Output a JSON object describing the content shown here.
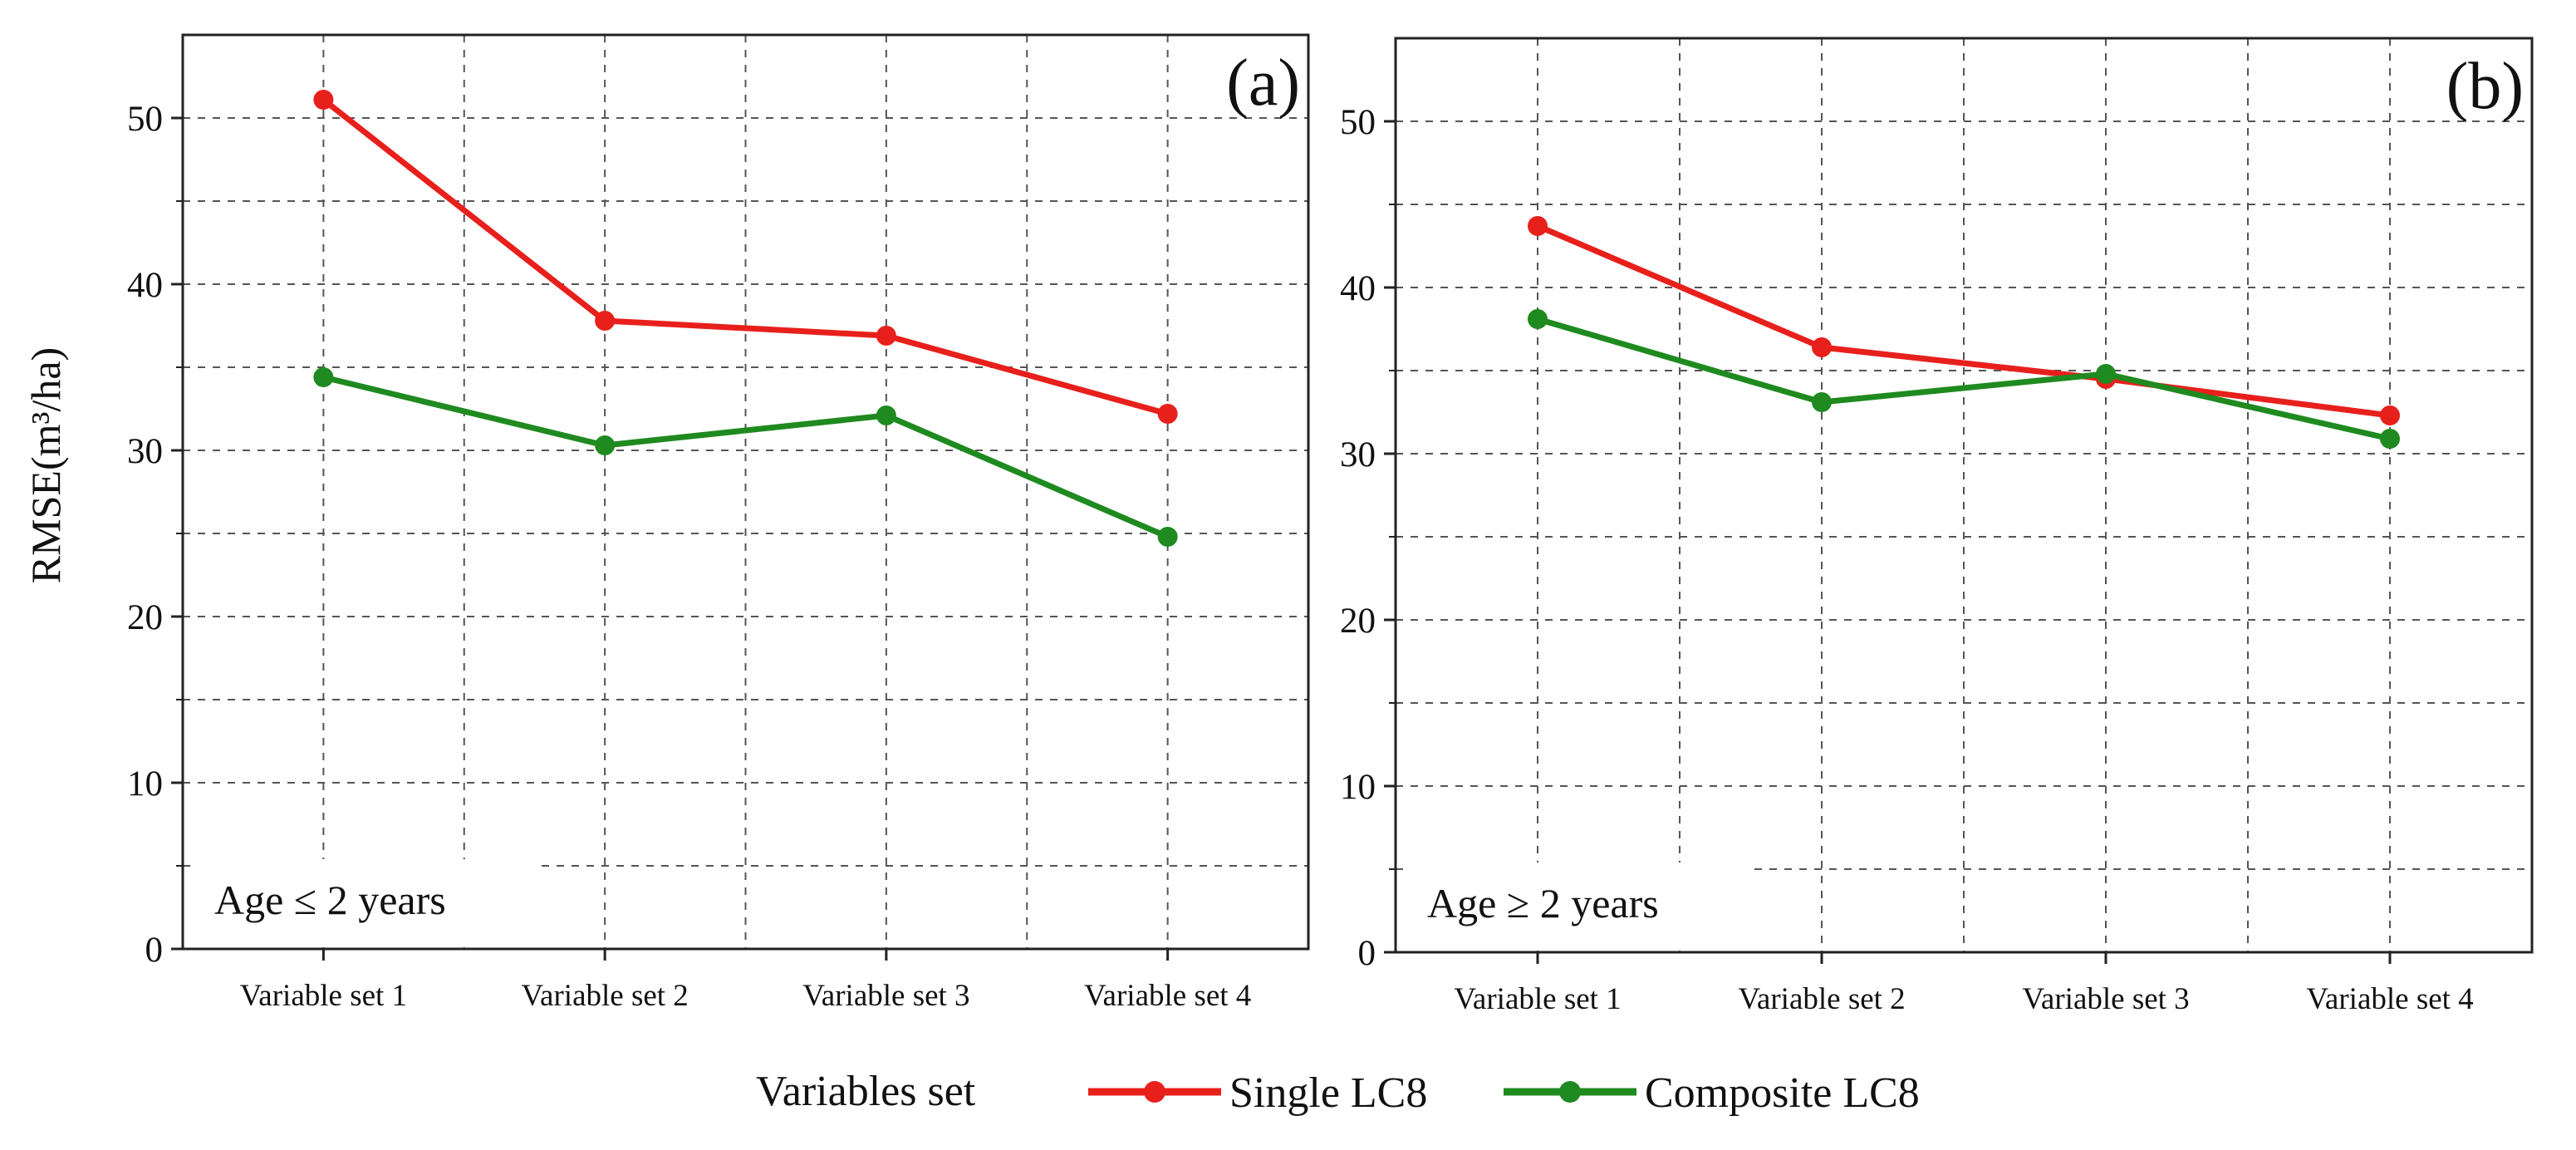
{
  "chart_data": [
    {
      "type": "line",
      "panel_label": "(a)",
      "annotation": "Age ≤ 2 years",
      "ylabel": "RMSE(m³/ha)",
      "xlabel": "",
      "ylim": [
        0,
        55
      ],
      "yticks": [
        0,
        10,
        20,
        30,
        40,
        50
      ],
      "grid": true,
      "categories": [
        "Variable set 1",
        "Variable set 2",
        "Variable set 3",
        "Variable set 4"
      ],
      "series": [
        {
          "name": "Single LC8",
          "color": "#e8201c",
          "values": [
            51.1,
            37.8,
            36.9,
            32.2
          ]
        },
        {
          "name": "Composite LC8",
          "color": "#1f8a1f",
          "values": [
            34.4,
            30.3,
            32.1,
            24.8
          ]
        }
      ]
    },
    {
      "type": "line",
      "panel_label": "(b)",
      "annotation": "Age ≥ 2 years",
      "ylabel": "",
      "xlabel": "",
      "ylim": [
        0,
        55
      ],
      "yticks": [
        0,
        10,
        20,
        30,
        40,
        50
      ],
      "grid": true,
      "categories": [
        "Variable set 1",
        "Variable set 2",
        "Variable set 3",
        "Variable set 4"
      ],
      "series": [
        {
          "name": "Single LC8",
          "color": "#e8201c",
          "values": [
            43.7,
            36.4,
            34.5,
            32.3
          ]
        },
        {
          "name": "Composite LC8",
          "color": "#1f8a1f",
          "values": [
            38.1,
            33.1,
            34.8,
            30.9
          ]
        }
      ]
    }
  ],
  "legend": {
    "title": "Variables set",
    "items": [
      {
        "label": "Single LC8",
        "color": "#e8201c"
      },
      {
        "label": "Composite LC8",
        "color": "#1f8a1f"
      }
    ]
  }
}
